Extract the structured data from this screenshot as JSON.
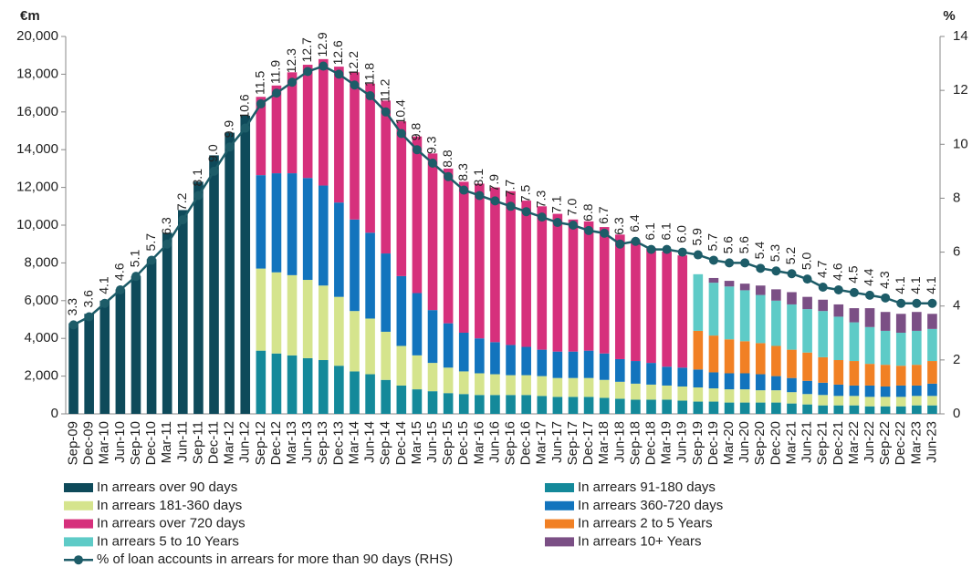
{
  "chart_data": {
    "type": "bar",
    "stacked": true,
    "y_label": "€m",
    "y2_label": "%",
    "categories": [
      "Sep-09",
      "Dec-09",
      "Mar-10",
      "Jun-10",
      "Sep-10",
      "Dec-10",
      "Mar-11",
      "Jun-11",
      "Sep-11",
      "Dec-11",
      "Mar-12",
      "Jun-12",
      "Sep-12",
      "Dec-12",
      "Mar-13",
      "Jun-13",
      "Sep-13",
      "Dec-13",
      "Mar-14",
      "Jun-14",
      "Sep-14",
      "Dec-14",
      "Mar-15",
      "Jun-15",
      "Sep-15",
      "Dec-15",
      "Mar-16",
      "Jun-16",
      "Sep-16",
      "Dec-16",
      "Mar-17",
      "Jun-17",
      "Sep-17",
      "Dec-17",
      "Mar-18",
      "Jun-18",
      "Sep-18",
      "Dec-18",
      "Mar-19",
      "Jun-19",
      "Sep-19",
      "Dec-19",
      "Mar-20",
      "Jun-20",
      "Sep-20",
      "Dec-20",
      "Mar-21",
      "Jun-21",
      "Sep-21",
      "Dec-21",
      "Mar-22",
      "Jun-22",
      "Sep-22",
      "Dec-22",
      "Mar-23",
      "Jun-23"
    ],
    "ylim": [
      0,
      20000
    ],
    "yticks": [
      0,
      {
        "value": 2000,
        "label": "2,000"
      },
      {
        "value": 4000,
        "label": "4,000"
      },
      {
        "value": 6000,
        "label": "6,000"
      },
      {
        "value": 8000,
        "label": "8,000"
      },
      {
        "value": 10000,
        "label": "10,000"
      },
      {
        "value": 12000,
        "label": "12,000"
      },
      {
        "value": 14000,
        "label": "14,000"
      },
      {
        "value": 16000,
        "label": "16,000"
      },
      {
        "value": 18000,
        "label": "18,000"
      },
      {
        "value": 20000,
        "label": "20,000"
      }
    ],
    "y2lim": [
      0,
      14
    ],
    "y2ticks": [
      0,
      2,
      4,
      6,
      8,
      10,
      12,
      14
    ],
    "series": [
      {
        "name": "In arrears over 90 days",
        "color": "#0e4a5a",
        "values": [
          4800,
          5300,
          6000,
          6600,
          7300,
          8200,
          9600,
          10800,
          12300,
          13700,
          14900,
          15800,
          null,
          null,
          null,
          null,
          null,
          null,
          null,
          null,
          null,
          null,
          null,
          null,
          null,
          null,
          null,
          null,
          null,
          null,
          null,
          null,
          null,
          null,
          null,
          null,
          null,
          null,
          null,
          null,
          null,
          null,
          null,
          null,
          null,
          null,
          null,
          null,
          null,
          null,
          null,
          null,
          null,
          null,
          null,
          null
        ]
      },
      {
        "name": "In arrears 91-180 days",
        "color": "#14899a",
        "values": [
          null,
          null,
          null,
          null,
          null,
          null,
          null,
          null,
          null,
          null,
          null,
          null,
          3350,
          3200,
          3100,
          2950,
          2850,
          2550,
          2250,
          2100,
          1800,
          1500,
          1300,
          1200,
          1100,
          1050,
          1000,
          1000,
          1000,
          1000,
          950,
          900,
          900,
          900,
          850,
          800,
          750,
          750,
          750,
          700,
          650,
          650,
          600,
          600,
          600,
          600,
          550,
          500,
          450,
          450,
          450,
          400,
          400,
          400,
          450,
          450
        ]
      },
      {
        "name": "In arrears 181-360 days",
        "color": "#d5e48d",
        "values": [
          null,
          null,
          null,
          null,
          null,
          null,
          null,
          null,
          null,
          null,
          null,
          null,
          4350,
          4300,
          4250,
          4150,
          3950,
          3650,
          3200,
          2950,
          2550,
          2100,
          1800,
          1500,
          1350,
          1200,
          1150,
          1100,
          1050,
          1050,
          1050,
          1000,
          1000,
          1000,
          950,
          900,
          850,
          800,
          750,
          750,
          750,
          700,
          700,
          700,
          650,
          650,
          600,
          550,
          550,
          500,
          500,
          500,
          500,
          500,
          500,
          500
        ]
      },
      {
        "name": "In arrears 360-720 days",
        "color": "#1274bd",
        "values": [
          null,
          null,
          null,
          null,
          null,
          null,
          null,
          null,
          null,
          null,
          null,
          null,
          4950,
          5250,
          5400,
          5400,
          5300,
          5000,
          4850,
          4550,
          4150,
          3700,
          3300,
          2800,
          2350,
          2050,
          1850,
          1700,
          1600,
          1500,
          1400,
          1400,
          1400,
          1450,
          1400,
          1200,
          1200,
          1150,
          1000,
          1000,
          950,
          850,
          850,
          850,
          850,
          750,
          750,
          700,
          650,
          600,
          550,
          600,
          550,
          600,
          550,
          650
        ]
      },
      {
        "name": "In arrears over 720 days",
        "color": "#d6307c",
        "values": [
          null,
          null,
          null,
          null,
          null,
          null,
          null,
          null,
          null,
          null,
          null,
          null,
          4150,
          4650,
          5350,
          6000,
          6700,
          7200,
          7800,
          7900,
          8100,
          8200,
          8300,
          8300,
          8200,
          8000,
          8200,
          8200,
          8150,
          7750,
          7600,
          7300,
          7000,
          6850,
          6700,
          6600,
          6400,
          6100,
          6100,
          5950,
          null,
          null,
          null,
          null,
          null,
          null,
          null,
          null,
          null,
          null,
          null,
          null,
          null,
          null,
          null,
          null
        ]
      },
      {
        "name": "In arrears 2 to 5 Years",
        "color": "#f18024",
        "values": [
          null,
          null,
          null,
          null,
          null,
          null,
          null,
          null,
          null,
          null,
          null,
          null,
          null,
          null,
          null,
          null,
          null,
          null,
          null,
          null,
          null,
          null,
          null,
          null,
          null,
          null,
          null,
          null,
          null,
          null,
          null,
          null,
          null,
          null,
          null,
          null,
          null,
          null,
          null,
          null,
          2050,
          1950,
          1800,
          1700,
          1650,
          1600,
          1500,
          1500,
          1350,
          1300,
          1300,
          1150,
          1150,
          1050,
          1100,
          1200
        ]
      },
      {
        "name": "In arrears 5 to 10 Years",
        "color": "#5ecbc7",
        "values": [
          null,
          null,
          null,
          null,
          null,
          null,
          null,
          null,
          null,
          null,
          null,
          null,
          null,
          null,
          null,
          null,
          null,
          null,
          null,
          null,
          null,
          null,
          null,
          null,
          null,
          null,
          null,
          null,
          null,
          null,
          null,
          null,
          null,
          null,
          null,
          null,
          null,
          null,
          null,
          null,
          3000,
          2800,
          2800,
          2700,
          2550,
          2400,
          2400,
          2300,
          2450,
          2300,
          2050,
          1950,
          1800,
          1750,
          1800,
          1700
        ]
      },
      {
        "name": "In arrears 10+ Years",
        "color": "#7b4f85",
        "values": [
          null,
          null,
          null,
          null,
          null,
          null,
          null,
          null,
          null,
          null,
          null,
          null,
          null,
          null,
          null,
          null,
          null,
          null,
          null,
          null,
          null,
          null,
          null,
          null,
          null,
          null,
          null,
          null,
          null,
          null,
          null,
          null,
          null,
          null,
          null,
          null,
          null,
          null,
          null,
          null,
          0,
          250,
          300,
          350,
          500,
          600,
          650,
          650,
          600,
          650,
          750,
          1000,
          1000,
          1000,
          1000,
          800
        ]
      },
      {
        "name": "% of loan accounts in arrears for more than 90 days (RHS)",
        "color": "#1d5c68",
        "type": "line",
        "axis": "y2",
        "values": [
          3.3,
          3.6,
          4.1,
          4.6,
          5.1,
          5.7,
          6.3,
          7.2,
          8.1,
          9.0,
          9.9,
          10.6,
          11.5,
          11.9,
          12.3,
          12.7,
          12.9,
          12.6,
          12.2,
          11.8,
          11.2,
          10.4,
          9.8,
          9.3,
          8.8,
          8.3,
          8.1,
          7.9,
          7.7,
          7.5,
          7.3,
          7.1,
          7.0,
          6.8,
          6.7,
          6.3,
          6.4,
          6.1,
          6.1,
          6.0,
          5.9,
          5.7,
          5.6,
          5.6,
          5.4,
          5.3,
          5.2,
          5.0,
          4.7,
          4.6,
          4.5,
          4.4,
          4.3,
          4.1,
          4.1,
          4.1
        ],
        "value_labels": [
          "3.3",
          "3.6",
          "4.1",
          "4.6",
          "5.1",
          "5.7",
          "6.3",
          "7.2",
          "8.1",
          "9.0",
          "9.9",
          "10.6",
          "11.5",
          "11.9",
          "12.3",
          "12.7",
          "12.9",
          "12.6",
          "12.2",
          "11.8",
          "11.2",
          "10.4",
          "9.8",
          "9.3",
          "8.8",
          "8.3",
          "8.1",
          "7.9",
          "7.7",
          "7.5",
          "7.3",
          "7.1",
          "7.0",
          "6.8",
          "6.7",
          "6.3",
          "6.4",
          "6.1",
          "6.1",
          "6.0",
          "5.9",
          "5.7",
          "5.6",
          "5.6",
          "5.4",
          "5.3",
          "5.2",
          "5.0",
          "4.7",
          "4.6",
          "4.5",
          "4.4",
          "4.3",
          "4.1",
          "4.1",
          "4.1"
        ]
      }
    ]
  }
}
